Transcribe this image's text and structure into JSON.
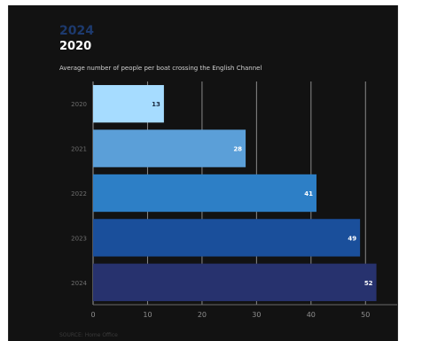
{
  "header": {
    "ghost_year": "2024",
    "year": "2020",
    "subtitle": "Average number of people per boat crossing the English Channel"
  },
  "footer": {
    "source": "SOURCE: Home Office"
  },
  "chart_data": {
    "type": "bar",
    "orientation": "horizontal",
    "title": "",
    "xlabel": "",
    "ylabel": "",
    "categories": [
      "2020",
      "2021",
      "2022",
      "2023",
      "2024"
    ],
    "values": [
      13,
      28,
      41,
      49,
      52
    ],
    "bar_colors": [
      "#a6dcff",
      "#5b9fd8",
      "#2d7fc6",
      "#1a4f9b",
      "#27326e"
    ],
    "xlim": [
      0,
      55
    ],
    "xticks": [
      0,
      10,
      20,
      30,
      40,
      50
    ],
    "grid": "vertical",
    "background": "#121212"
  }
}
